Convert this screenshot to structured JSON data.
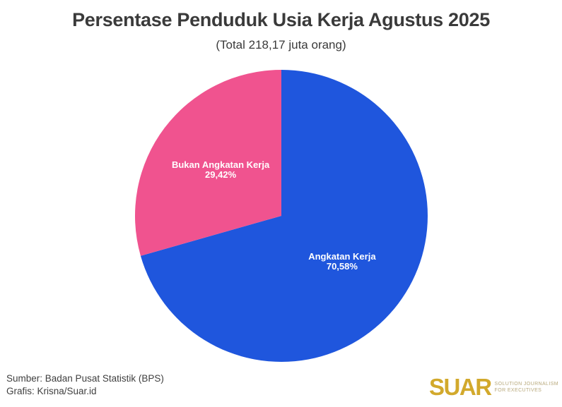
{
  "page": {
    "title": "Persentase Penduduk Usia Kerja Agustus 2025",
    "subtitle": "(Total 218,17 juta orang)"
  },
  "chart_data": {
    "type": "pie",
    "title": "Persentase Penduduk Usia Kerja Agustus 2025",
    "subtitle": "(Total 218,17 juta orang)",
    "total_label": "218,17 juta orang",
    "start_angle_deg": 0,
    "direction": "clockwise",
    "legend_position": "none",
    "slices": [
      {
        "label": "Angkatan Kerja",
        "value": 70.58,
        "pct_label": "70,58%",
        "color": "#1f56dd"
      },
      {
        "label": "Bukan Angkatan Kerja",
        "value": 29.42,
        "pct_label": "29,42%",
        "color": "#f0538f"
      }
    ]
  },
  "footer": {
    "source": "Sumber: Badan Pusat Statistik (BPS)",
    "credit": "Grafis: Krisna/Suar.id",
    "logo": {
      "name": "SUAR",
      "tagline_line1": "Solution Journalism",
      "tagline_line2": "for Executives",
      "color": "#d2a92c"
    }
  },
  "colors": {
    "background": "#ffffff",
    "title_text": "#3a3a3a",
    "slice_label_text": "#ffffff",
    "footer_text": "#3f3f3f"
  }
}
